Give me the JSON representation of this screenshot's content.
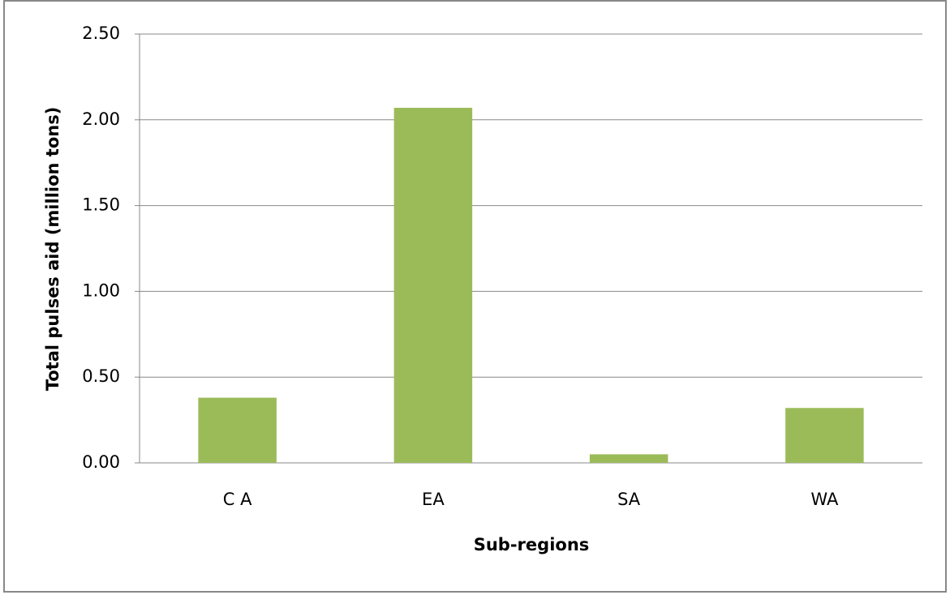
{
  "chart_data": {
    "type": "bar",
    "x_label": "Sub-regions",
    "y_label": "Total pulses aid (million tons)",
    "categories": [
      "C A",
      "EA",
      "SA",
      "WA"
    ],
    "values": [
      0.38,
      2.07,
      0.05,
      0.32
    ],
    "color": "#9bbb59",
    "ylim": [
      0,
      2.5
    ],
    "yticks": [
      {
        "value": 0,
        "label": "0.00"
      },
      {
        "value": 0.5,
        "label": "0.50"
      },
      {
        "value": 1,
        "label": "1.00"
      },
      {
        "value": 1.5,
        "label": "1.50"
      },
      {
        "value": 2,
        "label": "2.00"
      },
      {
        "value": 2.5,
        "label": "2.50"
      }
    ],
    "grid": true
  }
}
